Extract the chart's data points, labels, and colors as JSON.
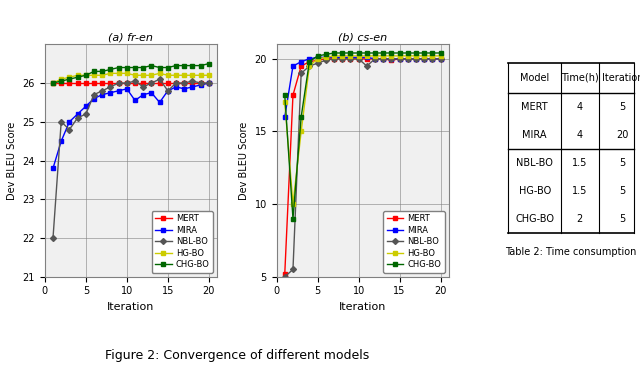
{
  "fr_en": {
    "iterations": [
      1,
      2,
      3,
      4,
      5,
      6,
      7,
      8,
      9,
      10,
      11,
      12,
      13,
      14,
      15,
      16,
      17,
      18,
      19,
      20
    ],
    "MERT": [
      26.0,
      26.0,
      26.0,
      26.0,
      26.0,
      26.0,
      26.0,
      26.0,
      26.0,
      26.0,
      26.0,
      26.0,
      26.0,
      26.0,
      26.0,
      26.0,
      26.0,
      26.0,
      26.0,
      26.0
    ],
    "MIRA": [
      23.8,
      24.5,
      25.0,
      25.2,
      25.4,
      25.6,
      25.7,
      25.75,
      25.8,
      25.85,
      25.55,
      25.7,
      25.75,
      25.5,
      25.8,
      25.9,
      25.85,
      25.9,
      25.95,
      26.0
    ],
    "NBL-BO": [
      22.0,
      25.0,
      24.8,
      25.1,
      25.2,
      25.7,
      25.8,
      25.9,
      26.0,
      26.0,
      26.05,
      25.9,
      26.0,
      26.1,
      25.8,
      26.0,
      26.0,
      26.05,
      26.0,
      26.0
    ],
    "HG-BO": [
      26.0,
      26.1,
      26.15,
      26.2,
      26.2,
      26.2,
      26.2,
      26.25,
      26.25,
      26.25,
      26.2,
      26.2,
      26.2,
      26.25,
      26.2,
      26.2,
      26.2,
      26.2,
      26.2,
      26.2
    ],
    "CHG-BO": [
      26.0,
      26.05,
      26.1,
      26.15,
      26.2,
      26.3,
      26.3,
      26.35,
      26.4,
      26.4,
      26.4,
      26.4,
      26.45,
      26.4,
      26.4,
      26.45,
      26.45,
      26.45,
      26.45,
      26.5
    ],
    "ylim": [
      21,
      27
    ],
    "yticks": [
      21,
      22,
      23,
      24,
      25,
      26
    ],
    "title": "(a) fr-en"
  },
  "cs_en": {
    "iterations": [
      1,
      2,
      3,
      4,
      5,
      6,
      7,
      8,
      9,
      10,
      11,
      12,
      13,
      14,
      15,
      16,
      17,
      18,
      19,
      20
    ],
    "MERT": [
      5.2,
      17.5,
      19.5,
      19.8,
      19.9,
      20.0,
      20.0,
      20.0,
      20.0,
      20.0,
      20.0,
      20.0,
      20.0,
      19.9,
      20.0,
      20.0,
      20.0,
      20.0,
      20.0,
      20.0
    ],
    "MIRA": [
      16.0,
      19.5,
      19.8,
      20.0,
      20.1,
      20.1,
      20.1,
      20.1,
      20.1,
      20.1,
      20.1,
      20.0,
      20.0,
      20.0,
      20.0,
      20.0,
      20.0,
      20.0,
      20.0,
      20.0
    ],
    "NBL-BO": [
      5.0,
      5.5,
      19.0,
      19.5,
      19.7,
      19.9,
      20.0,
      20.0,
      20.0,
      20.0,
      19.5,
      20.0,
      20.0,
      20.0,
      20.0,
      20.0,
      20.0,
      20.0,
      20.0,
      20.0
    ],
    "HG-BO": [
      17.0,
      10.0,
      15.0,
      19.5,
      20.0,
      20.1,
      20.2,
      20.2,
      20.2,
      20.2,
      20.2,
      20.2,
      20.2,
      20.2,
      20.2,
      20.2,
      20.2,
      20.2,
      20.2,
      20.2
    ],
    "CHG-BO": [
      17.5,
      9.0,
      16.0,
      19.8,
      20.2,
      20.3,
      20.4,
      20.4,
      20.4,
      20.4,
      20.4,
      20.4,
      20.4,
      20.4,
      20.4,
      20.4,
      20.4,
      20.4,
      20.4,
      20.4
    ],
    "ylim": [
      5,
      21
    ],
    "yticks": [
      5,
      10,
      15,
      20
    ],
    "title": "(b) cs-en"
  },
  "table2": {
    "header": [
      "Model",
      "Time(h)",
      "Iteration"
    ],
    "rows": [
      [
        "MERT",
        "4",
        "5"
      ],
      [
        "MIRA",
        "4",
        "20"
      ],
      [
        "NBL-BO",
        "1.5",
        "5"
      ],
      [
        "HG-BO",
        "1.5",
        "5"
      ],
      [
        "CHG-BO",
        "2",
        "5"
      ]
    ],
    "title": "Table 2: Time consumption"
  },
  "colors": {
    "MERT": "#ff0000",
    "MIRA": "#0000ff",
    "NBL-BO": "#555555",
    "HG-BO": "#cccc00",
    "CHG-BO": "#006600"
  },
  "figure_title": "Figure 2: Convergence of different models",
  "ylabel": "Dev BLEU Score",
  "xlabel": "Iteration"
}
